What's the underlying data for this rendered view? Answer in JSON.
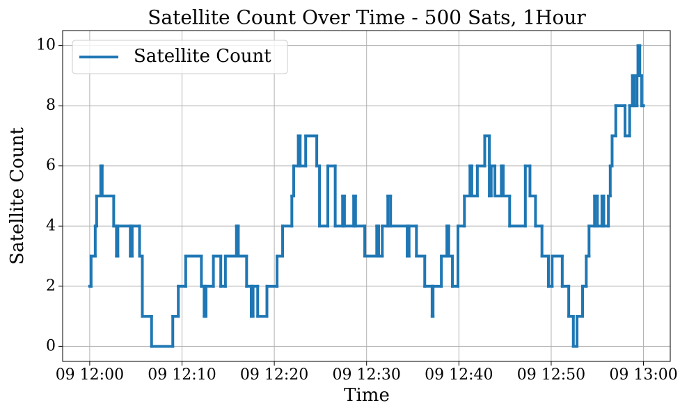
{
  "chart_data": {
    "type": "line",
    "step": "post",
    "title": "Satellite Count Over Time - 500 Sats, 1Hour",
    "x_label": "Time",
    "y_label": "Satellite Count",
    "x": [
      "09 12:00:00",
      "09 12:00:09",
      "09 12:00:36",
      "09 12:00:45",
      "09 12:01:12",
      "09 12:01:21",
      "09 12:02:36",
      "09 12:02:54",
      "09 12:03:03",
      "09 12:04:24",
      "09 12:04:36",
      "09 12:05:24",
      "09 12:05:42",
      "09 12:06:42",
      "09 12:09:00",
      "09 12:09:36",
      "09 12:10:24",
      "09 12:12:06",
      "09 12:12:24",
      "09 12:12:36",
      "09 12:13:24",
      "09 12:14:12",
      "09 12:14:42",
      "09 12:15:54",
      "09 12:16:06",
      "09 12:17:00",
      "09 12:17:30",
      "09 12:17:42",
      "09 12:18:12",
      "09 12:19:12",
      "09 12:20:18",
      "09 12:20:54",
      "09 12:21:54",
      "09 12:22:06",
      "09 12:22:36",
      "09 12:22:48",
      "09 12:23:24",
      "09 12:24:36",
      "09 12:24:54",
      "09 12:25:48",
      "09 12:26:36",
      "09 12:27:24",
      "09 12:27:36",
      "09 12:28:36",
      "09 12:28:48",
      "09 12:29:48",
      "09 12:31:06",
      "09 12:31:18",
      "09 12:31:42",
      "09 12:32:18",
      "09 12:32:36",
      "09 12:34:24",
      "09 12:34:36",
      "09 12:35:24",
      "09 12:36:18",
      "09 12:37:06",
      "09 12:37:12",
      "09 12:38:06",
      "09 12:38:42",
      "09 12:38:54",
      "09 12:39:18",
      "09 12:39:54",
      "09 12:40:36",
      "09 12:41:12",
      "09 12:41:24",
      "09 12:42:00",
      "09 12:42:48",
      "09 12:43:18",
      "09 12:43:30",
      "09 12:43:54",
      "09 12:44:36",
      "09 12:44:48",
      "09 12:45:30",
      "09 12:47:12",
      "09 12:47:42",
      "09 12:48:18",
      "09 12:49:00",
      "09 12:49:42",
      "09 12:50:06",
      "09 12:51:12",
      "09 12:51:54",
      "09 12:52:24",
      "09 12:52:48",
      "09 12:53:24",
      "09 12:53:48",
      "09 12:54:06",
      "09 12:54:42",
      "09 12:55:00",
      "09 12:55:30",
      "09 12:55:42",
      "09 12:56:12",
      "09 12:56:24",
      "09 12:56:36",
      "09 12:57:00",
      "09 12:58:00",
      "09 12:58:30",
      "09 12:58:48",
      "09 12:59:00",
      "09 12:59:18",
      "09 12:59:24",
      "09 12:59:36",
      "09 12:59:48",
      "09 13:00:00"
    ],
    "series": [
      {
        "name": "Satellite Count",
        "color": "#1f77b4",
        "values": [
          2,
          3,
          4,
          5,
          6,
          5,
          4,
          3,
          4,
          3,
          4,
          3,
          1,
          0,
          1,
          2,
          3,
          2,
          1,
          2,
          3,
          2,
          3,
          4,
          3,
          2,
          1,
          2,
          1,
          2,
          3,
          4,
          5,
          6,
          7,
          6,
          7,
          6,
          4,
          6,
          4,
          5,
          4,
          5,
          4,
          3,
          4,
          3,
          4,
          5,
          4,
          3,
          4,
          3,
          2,
          1,
          2,
          3,
          4,
          3,
          2,
          4,
          5,
          6,
          5,
          6,
          7,
          5,
          6,
          5,
          6,
          5,
          4,
          6,
          5,
          4,
          3,
          2,
          3,
          2,
          1,
          0,
          1,
          2,
          3,
          4,
          5,
          4,
          5,
          4,
          5,
          6,
          7,
          8,
          7,
          8,
          9,
          8,
          9,
          10,
          9,
          8,
          8
        ]
      }
    ],
    "xlim": [
      "09 11:57:04",
      "09 13:02:54"
    ],
    "xticks": [
      "09 12:00",
      "09 12:10",
      "09 12:20",
      "09 12:30",
      "09 12:40",
      "09 12:50",
      "09 13:00"
    ],
    "ylim": [
      -0.5,
      10.5
    ],
    "yticks": [
      0,
      2,
      4,
      6,
      8,
      10
    ],
    "grid": true,
    "legend": "upper left"
  }
}
